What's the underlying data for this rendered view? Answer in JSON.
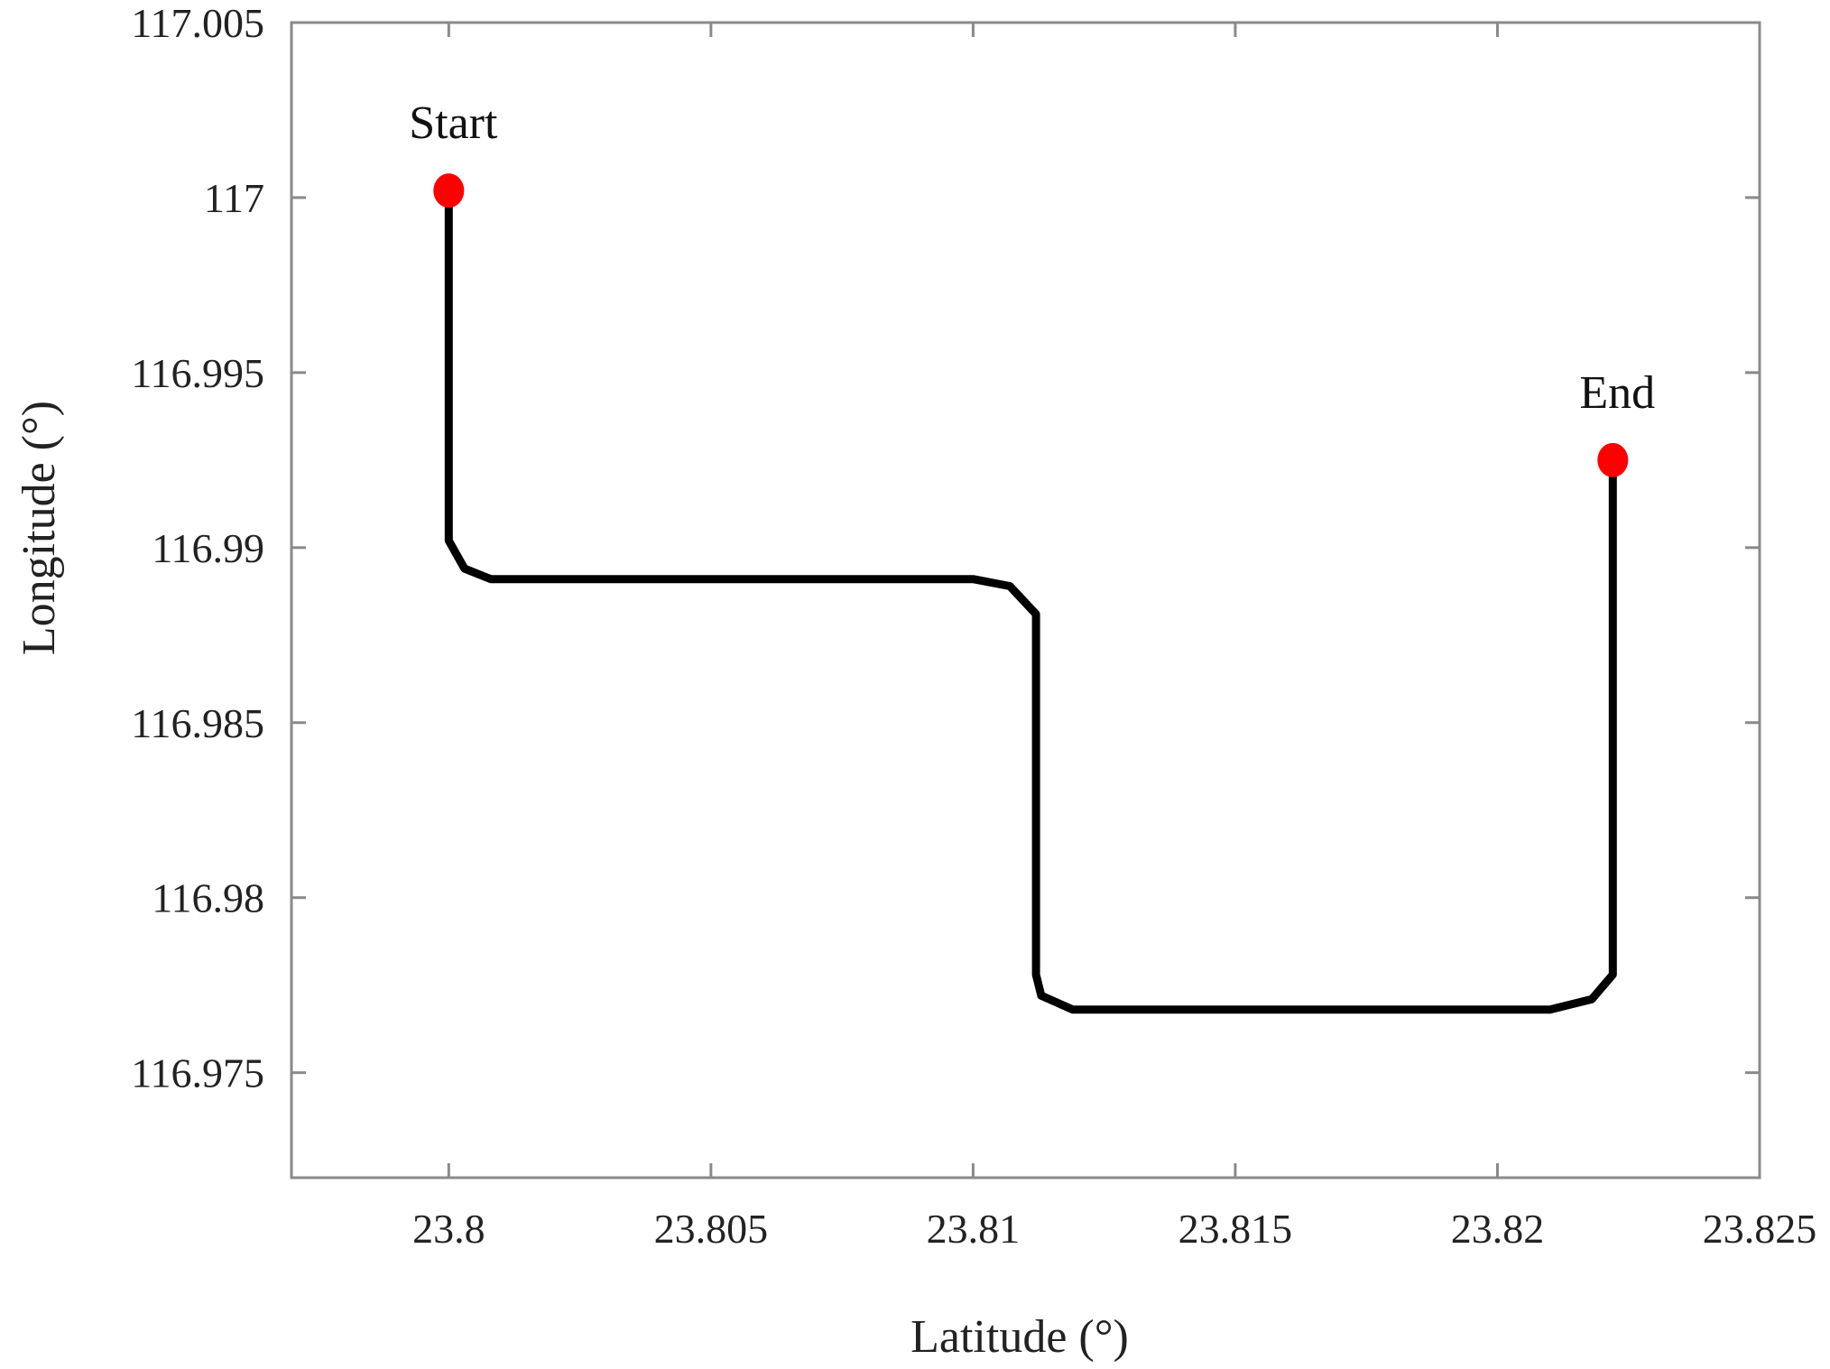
{
  "chart_data": {
    "type": "line",
    "title": "",
    "xlabel": "Latitude (°)",
    "ylabel": "Longitude  (°)",
    "xlim": [
      23.797,
      23.825
    ],
    "ylim": [
      116.972,
      117.005
    ],
    "xticks": [
      23.8,
      23.805,
      23.81,
      23.815,
      23.82,
      23.825
    ],
    "xtick_labels": [
      "23.8",
      "23.805",
      "23.81",
      "23.815",
      "23.82",
      "23.825"
    ],
    "yticks": [
      116.975,
      116.98,
      116.985,
      116.99,
      116.995,
      117.0,
      117.005
    ],
    "ytick_labels": [
      "116.975",
      "116.98",
      "116.985",
      "116.99",
      "116.995",
      "117",
      "117.005"
    ],
    "grid": false,
    "series": [
      {
        "color": "#000000",
        "x": [
          23.8,
          23.8,
          23.8003,
          23.8008,
          23.8022,
          23.81,
          23.8107,
          23.8112,
          23.8112,
          23.8113,
          23.8119,
          23.821,
          23.8218,
          23.8222,
          23.8222
        ],
        "y": [
          117.0002,
          116.9902,
          116.9894,
          116.9891,
          116.9891,
          116.9891,
          116.9889,
          116.9881,
          116.9778,
          116.9772,
          116.9768,
          116.9768,
          116.9771,
          116.9778,
          116.9925
        ]
      }
    ],
    "markers": [
      {
        "label": "Start",
        "x": 23.8,
        "y": 117.0002,
        "color": "#ff0000"
      },
      {
        "label": "End",
        "x": 23.8222,
        "y": 116.9925,
        "color": "#ff0000"
      }
    ]
  }
}
